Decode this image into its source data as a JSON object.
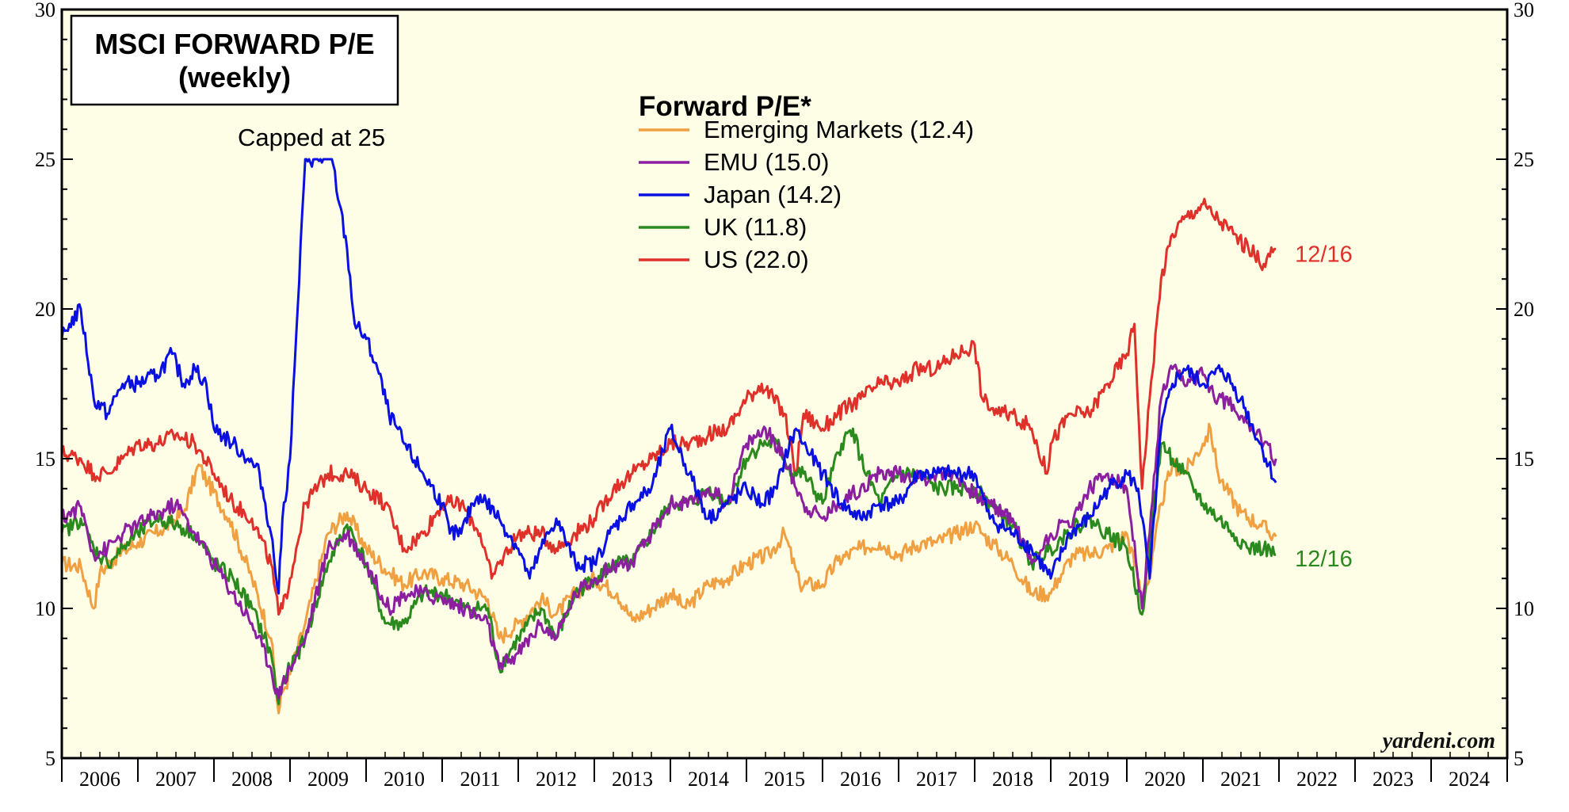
{
  "chart_data": {
    "type": "line",
    "title": "MSCI FORWARD P/E",
    "subtitle": "(weekly)",
    "legend_title": "Forward P/E*",
    "legend_placement": "top-center",
    "annotation": "Capped at 25",
    "source": "yardeni.com",
    "ylim": [
      5,
      30
    ],
    "y_ticks": [
      "5",
      "10",
      "15",
      "20",
      "25",
      "30"
    ],
    "xlim": [
      2006.0,
      2025.0
    ],
    "x_labels": [
      "2006",
      "2007",
      "2008",
      "2009",
      "2010",
      "2011",
      "2012",
      "2013",
      "2014",
      "2015",
      "2016",
      "2017",
      "2018",
      "2019",
      "2020",
      "2021",
      "2022",
      "2023",
      "2024"
    ],
    "grid": false,
    "colors": {
      "background": "#fefde6",
      "emerging": "#f0a040",
      "emu": "#8b1fa0",
      "japan": "#0a10e0",
      "uk": "#2a8a1e",
      "us": "#e0302a"
    },
    "end_labels": [
      {
        "text": "12/16",
        "series": "US",
        "color": "#e0302a"
      },
      {
        "text": "12/16",
        "series": "UK",
        "color": "#2a8a1e"
      }
    ],
    "series": [
      {
        "name": "Emerging Markets (12.4)",
        "color_key": "emerging",
        "x": [
          2006.0,
          2006.25,
          2006.42,
          2006.5,
          2006.75,
          2007.0,
          2007.3,
          2007.6,
          2007.8,
          2007.92,
          2008.2,
          2008.5,
          2008.75,
          2008.85,
          2008.9,
          2009.0,
          2009.2,
          2009.5,
          2009.75,
          2010.0,
          2010.3,
          2010.5,
          2010.75,
          2011.0,
          2011.3,
          2011.6,
          2011.75,
          2012.0,
          2012.3,
          2012.5,
          2012.75,
          2013.0,
          2013.3,
          2013.5,
          2013.75,
          2014.0,
          2014.2,
          2014.5,
          2014.75,
          2015.0,
          2015.3,
          2015.5,
          2015.7,
          2016.0,
          2016.2,
          2016.5,
          2016.75,
          2017.0,
          2017.3,
          2017.5,
          2017.75,
          2018.0,
          2018.1,
          2018.3,
          2018.5,
          2018.75,
          2019.0,
          2019.1,
          2019.3,
          2019.5,
          2019.75,
          2020.0,
          2020.2,
          2020.3,
          2020.45,
          2020.6,
          2020.75,
          2021.0,
          2021.1,
          2021.2,
          2021.3,
          2021.5,
          2021.75,
          2021.96
        ],
        "y": [
          11.5,
          11.4,
          10.0,
          11.2,
          11.8,
          12.2,
          12.6,
          13.2,
          14.8,
          14.2,
          13.0,
          11.0,
          9.0,
          6.5,
          7.2,
          7.8,
          9.5,
          12.5,
          13.2,
          12.0,
          11.2,
          10.8,
          11.2,
          11.0,
          10.8,
          10.3,
          9.0,
          9.5,
          10.3,
          9.8,
          10.5,
          11.0,
          10.5,
          9.6,
          10.0,
          10.5,
          10.0,
          10.8,
          11.0,
          11.5,
          11.8,
          12.5,
          10.8,
          10.8,
          11.6,
          12.0,
          12.2,
          11.8,
          12.2,
          12.2,
          12.5,
          12.8,
          12.5,
          12.0,
          11.5,
          10.5,
          10.5,
          11.0,
          11.8,
          11.8,
          12.0,
          12.5,
          10.5,
          11.0,
          13.5,
          14.8,
          14.5,
          15.5,
          16.0,
          14.5,
          14.0,
          13.2,
          12.8,
          12.4
        ]
      },
      {
        "name": "EMU (15.0)",
        "color_key": "emu",
        "x": [
          2006.0,
          2006.25,
          2006.42,
          2006.6,
          2006.8,
          2007.0,
          2007.3,
          2007.5,
          2007.75,
          2008.0,
          2008.25,
          2008.5,
          2008.75,
          2008.85,
          2008.9,
          2009.0,
          2009.2,
          2009.5,
          2009.75,
          2010.0,
          2010.3,
          2010.5,
          2010.75,
          2011.0,
          2011.3,
          2011.6,
          2011.75,
          2012.0,
          2012.3,
          2012.5,
          2012.75,
          2013.0,
          2013.3,
          2013.5,
          2013.75,
          2014.0,
          2014.3,
          2014.5,
          2014.75,
          2015.0,
          2015.25,
          2015.5,
          2015.75,
          2016.0,
          2016.2,
          2016.5,
          2016.75,
          2017.0,
          2017.3,
          2017.5,
          2017.75,
          2018.0,
          2018.2,
          2018.5,
          2018.75,
          2019.0,
          2019.3,
          2019.5,
          2019.75,
          2020.0,
          2020.2,
          2020.3,
          2020.45,
          2020.6,
          2020.75,
          2021.0,
          2021.2,
          2021.4,
          2021.6,
          2021.8,
          2021.96
        ],
        "y": [
          13.0,
          13.4,
          11.8,
          12.0,
          12.5,
          12.8,
          13.2,
          13.5,
          12.5,
          11.5,
          10.5,
          9.5,
          8.0,
          7.0,
          7.5,
          8.0,
          9.0,
          12.0,
          12.5,
          11.5,
          10.0,
          10.5,
          10.5,
          10.3,
          10.0,
          9.5,
          8.0,
          8.5,
          9.5,
          9.0,
          10.5,
          11.0,
          11.5,
          11.5,
          12.5,
          13.5,
          13.5,
          14.0,
          13.5,
          15.5,
          16.0,
          15.0,
          13.5,
          13.0,
          13.5,
          14.0,
          14.5,
          14.5,
          14.3,
          14.5,
          14.5,
          13.8,
          13.5,
          13.0,
          11.5,
          12.5,
          13.0,
          14.0,
          14.5,
          14.0,
          10.0,
          12.5,
          17.0,
          18.0,
          17.5,
          17.8,
          17.0,
          16.8,
          16.2,
          15.5,
          15.0
        ]
      },
      {
        "name": "Japan (14.2)",
        "color_key": "japan",
        "x": [
          2006.0,
          2006.1,
          2006.25,
          2006.42,
          2006.6,
          2006.8,
          2007.0,
          2007.25,
          2007.45,
          2007.6,
          2007.75,
          2007.9,
          2008.0,
          2008.25,
          2008.45,
          2008.6,
          2008.75,
          2008.85,
          2008.9,
          2009.0,
          2009.1,
          2009.2,
          2009.25,
          2009.55,
          2009.65,
          2009.75,
          2009.85,
          2010.0,
          2010.15,
          2010.3,
          2010.5,
          2010.75,
          2011.0,
          2011.1,
          2011.25,
          2011.4,
          2011.5,
          2011.75,
          2012.0,
          2012.15,
          2012.3,
          2012.5,
          2012.75,
          2013.0,
          2013.2,
          2013.35,
          2013.5,
          2013.75,
          2014.0,
          2014.25,
          2014.5,
          2014.75,
          2015.0,
          2015.2,
          2015.4,
          2015.5,
          2015.65,
          2015.75,
          2016.0,
          2016.25,
          2016.5,
          2016.75,
          2017.0,
          2017.25,
          2017.5,
          2017.75,
          2018.0,
          2018.2,
          2018.5,
          2018.75,
          2019.0,
          2019.25,
          2019.5,
          2019.75,
          2020.0,
          2020.15,
          2020.3,
          2020.45,
          2020.6,
          2020.75,
          2021.0,
          2021.25,
          2021.5,
          2021.75,
          2021.96
        ],
        "y": [
          19.0,
          19.5,
          20.0,
          17.0,
          16.5,
          17.5,
          17.5,
          17.8,
          18.5,
          17.5,
          18.0,
          17.5,
          16.0,
          15.5,
          15.0,
          14.5,
          12.5,
          10.5,
          13.0,
          15.0,
          20.0,
          25.0,
          25.0,
          25.0,
          23.5,
          22.0,
          19.5,
          19.0,
          18.0,
          16.5,
          15.5,
          14.5,
          13.5,
          12.5,
          12.5,
          13.5,
          13.8,
          13.0,
          12.0,
          11.0,
          12.0,
          13.0,
          11.5,
          11.5,
          12.5,
          13.0,
          13.5,
          14.0,
          16.0,
          14.5,
          13.0,
          13.5,
          14.0,
          13.5,
          14.0,
          15.0,
          16.0,
          15.5,
          14.5,
          13.5,
          13.0,
          13.5,
          13.5,
          14.5,
          14.5,
          14.5,
          14.5,
          13.0,
          12.5,
          12.0,
          11.0,
          12.5,
          13.0,
          14.0,
          14.5,
          14.0,
          11.0,
          16.0,
          17.5,
          18.0,
          17.5,
          18.0,
          17.0,
          15.5,
          14.2
        ]
      },
      {
        "name": "UK (11.8)",
        "color_key": "uk",
        "x": [
          2006.0,
          2006.25,
          2006.42,
          2006.6,
          2006.8,
          2007.0,
          2007.25,
          2007.5,
          2007.75,
          2008.0,
          2008.25,
          2008.5,
          2008.75,
          2008.85,
          2008.9,
          2009.0,
          2009.2,
          2009.5,
          2009.75,
          2010.0,
          2010.25,
          2010.5,
          2010.75,
          2011.0,
          2011.3,
          2011.6,
          2011.75,
          2012.0,
          2012.3,
          2012.5,
          2012.75,
          2013.0,
          2013.3,
          2013.5,
          2013.75,
          2014.0,
          2014.3,
          2014.5,
          2014.75,
          2015.0,
          2015.2,
          2015.4,
          2015.6,
          2015.75,
          2016.0,
          2016.25,
          2016.4,
          2016.5,
          2016.75,
          2017.0,
          2017.25,
          2017.5,
          2017.75,
          2018.0,
          2018.2,
          2018.5,
          2018.75,
          2019.0,
          2019.2,
          2019.5,
          2019.75,
          2020.0,
          2020.2,
          2020.3,
          2020.45,
          2020.6,
          2020.75,
          2021.0,
          2021.2,
          2021.4,
          2021.6,
          2021.8,
          2021.96
        ],
        "y": [
          12.5,
          13.0,
          12.0,
          11.5,
          12.0,
          12.5,
          13.0,
          12.8,
          12.5,
          11.5,
          11.0,
          10.0,
          8.5,
          6.8,
          7.5,
          8.0,
          9.0,
          11.5,
          12.8,
          11.5,
          9.5,
          9.5,
          10.5,
          10.5,
          10.0,
          10.0,
          8.0,
          9.0,
          10.0,
          9.0,
          10.5,
          11.0,
          11.5,
          11.5,
          12.5,
          13.5,
          13.5,
          14.0,
          13.5,
          15.0,
          15.5,
          15.5,
          14.5,
          14.5,
          13.5,
          15.5,
          16.0,
          15.0,
          13.5,
          14.5,
          14.5,
          14.0,
          14.0,
          14.0,
          13.5,
          12.8,
          11.5,
          12.0,
          12.5,
          13.0,
          12.5,
          12.0,
          9.8,
          12.0,
          15.5,
          15.0,
          14.5,
          13.5,
          13.0,
          12.5,
          12.0,
          12.0,
          11.8
        ]
      },
      {
        "name": "US (22.0)",
        "color_key": "us",
        "x": [
          2006.0,
          2006.25,
          2006.42,
          2006.6,
          2006.8,
          2007.0,
          2007.25,
          2007.5,
          2007.75,
          2008.0,
          2008.25,
          2008.5,
          2008.75,
          2008.85,
          2008.9,
          2009.0,
          2009.2,
          2009.5,
          2009.75,
          2010.0,
          2010.25,
          2010.5,
          2010.75,
          2011.0,
          2011.25,
          2011.5,
          2011.65,
          2011.75,
          2012.0,
          2012.3,
          2012.5,
          2012.75,
          2013.0,
          2013.25,
          2013.5,
          2013.75,
          2014.0,
          2014.25,
          2014.5,
          2014.75,
          2015.0,
          2015.2,
          2015.5,
          2015.65,
          2015.75,
          2016.0,
          2016.2,
          2016.5,
          2016.75,
          2017.0,
          2017.25,
          2017.5,
          2017.75,
          2018.0,
          2018.1,
          2018.3,
          2018.5,
          2018.75,
          2018.95,
          2019.0,
          2019.25,
          2019.5,
          2019.75,
          2020.0,
          2020.1,
          2020.2,
          2020.3,
          2020.45,
          2020.6,
          2020.75,
          2021.0,
          2021.2,
          2021.4,
          2021.6,
          2021.8,
          2021.96
        ],
        "y": [
          15.2,
          15.0,
          14.5,
          14.5,
          15.0,
          15.5,
          15.5,
          15.8,
          15.5,
          14.5,
          13.5,
          13.0,
          11.5,
          9.8,
          10.0,
          11.0,
          13.5,
          14.5,
          14.5,
          14.0,
          13.5,
          12.0,
          12.5,
          13.5,
          13.5,
          12.5,
          11.0,
          11.5,
          12.5,
          12.5,
          12.0,
          12.5,
          13.0,
          14.0,
          14.5,
          15.0,
          15.5,
          15.5,
          15.8,
          16.0,
          17.0,
          17.5,
          16.5,
          14.5,
          16.5,
          16.0,
          16.5,
          17.0,
          17.5,
          17.5,
          18.0,
          18.0,
          18.5,
          18.8,
          17.0,
          16.5,
          16.5,
          16.0,
          14.5,
          15.5,
          16.5,
          16.5,
          17.5,
          18.5,
          19.5,
          14.0,
          17.0,
          21.0,
          22.5,
          23.0,
          23.5,
          23.0,
          22.5,
          22.0,
          21.5,
          22.0
        ]
      }
    ]
  }
}
